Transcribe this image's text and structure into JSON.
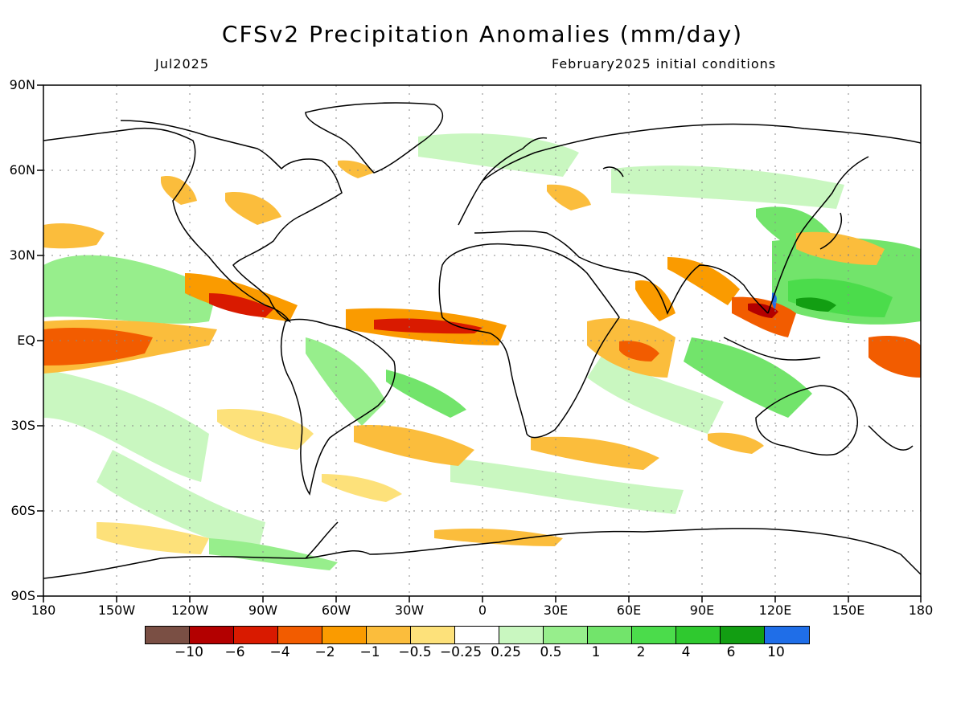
{
  "title": "CFSv2 Precipitation Anomalies (mm/day)",
  "subtitle_left": "Jul2025",
  "subtitle_right": "February2025 initial conditions",
  "lat_labels": [
    "90N",
    "60N",
    "30N",
    "EQ",
    "30S",
    "60S",
    "90S"
  ],
  "lon_labels": [
    "180",
    "150W",
    "120W",
    "90W",
    "60W",
    "30W",
    "0",
    "30E",
    "60E",
    "90E",
    "120E",
    "150E",
    "180"
  ],
  "colorbar": {
    "colors": [
      "#7a4f44",
      "#b30000",
      "#d91a00",
      "#f25c00",
      "#fa9b00",
      "#fbbd3c",
      "#fde17a",
      "#ffffff",
      "#c9f7c0",
      "#97ee8c",
      "#72e46b",
      "#4bdc4b",
      "#2fc92f",
      "#129e12",
      "#1f6ee8"
    ],
    "labels": [
      "−10",
      "−6",
      "−4",
      "−2",
      "−1",
      "−0.5",
      "−0.25",
      "0.25",
      "0.5",
      "1",
      "2",
      "4",
      "6",
      "10"
    ]
  }
}
